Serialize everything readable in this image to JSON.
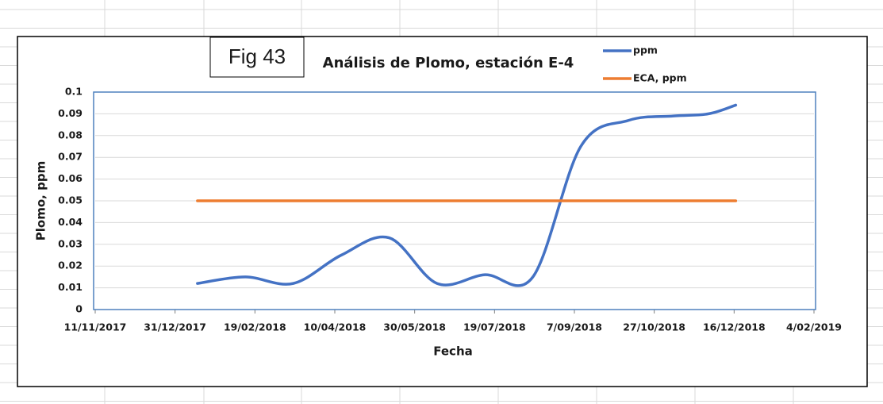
{
  "chart_data": {
    "type": "line",
    "title": "Análisis de Plomo, estación E-4",
    "annotation": "Fig 43",
    "xlabel": "Fecha",
    "ylabel": "Plomo, ppm",
    "xlim": [
      "2017-11-11",
      "2019-02-04"
    ],
    "xticks": [
      {
        "value": "2017-11-11",
        "label": "11/11/2017"
      },
      {
        "value": "2017-12-31",
        "label": "31/12/2017"
      },
      {
        "value": "2018-02-19",
        "label": "19/02/2018"
      },
      {
        "value": "2018-04-10",
        "label": "10/04/2018"
      },
      {
        "value": "2018-05-30",
        "label": "30/05/2018"
      },
      {
        "value": "2018-07-19",
        "label": "19/07/2018"
      },
      {
        "value": "2018-09-07",
        "label": "7/09/2018"
      },
      {
        "value": "2018-10-27",
        "label": "27/10/2018"
      },
      {
        "value": "2018-12-16",
        "label": "16/12/2018"
      },
      {
        "value": "2019-02-04",
        "label": "4/02/2019"
      }
    ],
    "ylim": [
      0,
      0.1
    ],
    "yticks": [
      0,
      0.01,
      0.02,
      0.03,
      0.04,
      0.05,
      0.06,
      0.07,
      0.08,
      0.09,
      0.1
    ],
    "grid": true,
    "smooth": true,
    "legend": "top-right",
    "series": [
      {
        "name": "ppm",
        "color": "#4472c4",
        "x": [
          "2018-01-14",
          "2018-02-13",
          "2018-03-15",
          "2018-04-14",
          "2018-05-14",
          "2018-06-13",
          "2018-07-13",
          "2018-08-12",
          "2018-09-11",
          "2018-10-11",
          "2018-11-08",
          "2018-11-30",
          "2018-12-17"
        ],
        "values": [
          0.012,
          0.015,
          0.012,
          0.025,
          0.033,
          0.012,
          0.016,
          0.015,
          0.075,
          0.087,
          0.089,
          0.09,
          0.094
        ]
      },
      {
        "name": "ECA, ppm",
        "color": "#ed7d31",
        "x": [
          "2018-01-14",
          "2018-12-17"
        ],
        "values": [
          0.05,
          0.05
        ]
      }
    ]
  }
}
